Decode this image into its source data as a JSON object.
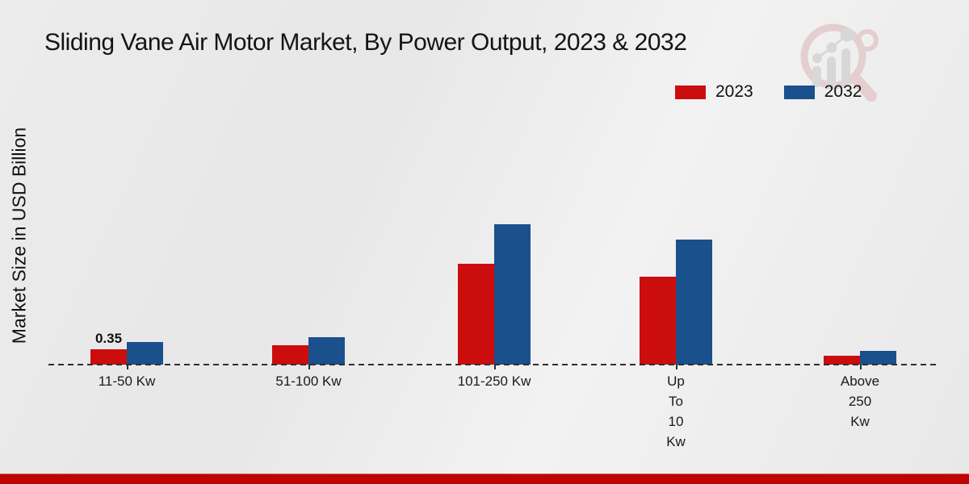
{
  "page": {
    "title": "Sliding Vane Air Motor Market, By Power Output, 2023 & 2032",
    "footer_accent_color": "#bf0404"
  },
  "chart_data": {
    "type": "bar",
    "title": "Sliding Vane Air Motor Market, By Power Output, 2023 & 2032",
    "xlabel": "",
    "ylabel": "Market Size in USD Billion",
    "unit": "USD Billion",
    "categories": [
      "11-50 Kw",
      "51-100 Kw",
      "101-250 Kw",
      "Up To 10 Kw",
      "Above 250 Kw"
    ],
    "category_label_lines": [
      [
        "11-50 Kw"
      ],
      [
        "51-100 Kw"
      ],
      [
        "101-250 Kw"
      ],
      [
        "Up",
        "To",
        "10",
        "Kw"
      ],
      [
        "Above",
        "250",
        "Kw"
      ]
    ],
    "series": [
      {
        "name": "2023",
        "color": "#cc0d0d",
        "values": [
          0.35,
          0.45,
          2.3,
          2.0,
          0.2
        ]
      },
      {
        "name": "2032",
        "color": "#1a508b",
        "values": [
          0.51,
          0.62,
          3.2,
          2.85,
          0.31
        ]
      }
    ],
    "bar_value_labels": [
      {
        "series": 0,
        "category": 0,
        "text": "0.35"
      }
    ],
    "ylim": [
      0,
      3.5
    ],
    "grid": false,
    "axis_style": "dashed-baseline",
    "legend_position": "top-right"
  }
}
